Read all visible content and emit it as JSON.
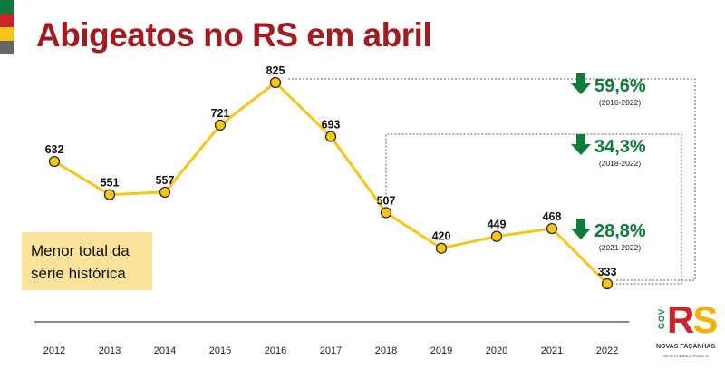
{
  "title": "Abigeatos no RS em abril",
  "note": {
    "line1": "Menor total da",
    "line2": "série histórica"
  },
  "colors": {
    "title": "#a01c20",
    "line": "#f5c518",
    "marker_fill": "#f5c518",
    "marker_stroke": "#222222",
    "arrow": "#0e7a3c",
    "note_bg": "#fde39a",
    "bar_green": "#0e7a3c",
    "bar_red": "#c8262b",
    "bar_yellow": "#f5c518",
    "bar_gray": "#666666"
  },
  "logo": {
    "gov": "GOV",
    "r": "R",
    "s": "S",
    "line1": "NOVAS FAÇANHAS",
    "line2": "NA SEGURANÇA PÚBLICA"
  },
  "chart_data": {
    "type": "line",
    "categories": [
      "2012",
      "2013",
      "2014",
      "2015",
      "2016",
      "2017",
      "2018",
      "2019",
      "2020",
      "2021",
      "2022"
    ],
    "values": [
      632,
      551,
      557,
      721,
      825,
      693,
      507,
      420,
      449,
      468,
      333
    ],
    "data_labels": [
      "632",
      "551",
      "557",
      "721",
      "825",
      "693",
      "507",
      "420",
      "449",
      "468",
      "333"
    ],
    "ylim": [
      300,
      850
    ],
    "grid": false,
    "annotations": [
      {
        "pct": "59,6%",
        "range": "(2016-2022)",
        "from": "2016",
        "to": "2022",
        "direction": "down"
      },
      {
        "pct": "34,3%",
        "range": "(2018-2022)",
        "from": "2018",
        "to": "2022",
        "direction": "down"
      },
      {
        "pct": "28,8%",
        "range": "(2021-2022)",
        "from": "2021",
        "to": "2022",
        "direction": "down"
      }
    ]
  }
}
